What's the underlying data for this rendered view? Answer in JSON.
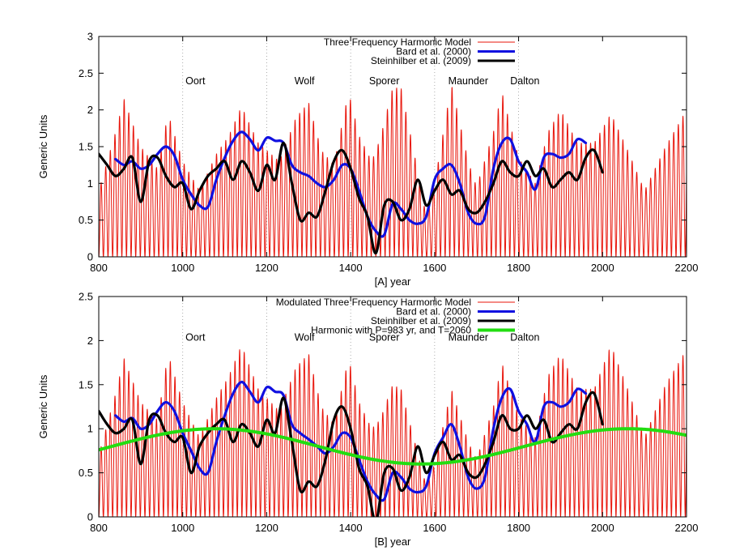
{
  "chart_data": [
    {
      "type": "line",
      "id": "A",
      "xlabel": "[A]   year",
      "ylabel": "Generic Units",
      "xlim": [
        800,
        2200
      ],
      "ylim": [
        0,
        3
      ],
      "xticks": [
        800,
        1000,
        1200,
        1400,
        1600,
        1800,
        2000,
        2200
      ],
      "yticks": [
        0,
        0.5,
        1,
        1.5,
        2,
        2.5,
        3
      ],
      "ytick_labels": [
        "0",
        "0.5",
        "1",
        "1.5",
        "2",
        "2.5",
        "3"
      ],
      "grid_x": [
        1000,
        1200,
        1400,
        1600,
        1800
      ],
      "legend": [
        "Three Frequency Harmonic Model",
        "Bard et al. (2000)",
        "Steinhilber et al. (2009)"
      ],
      "legend_position": "top-center",
      "annotations": [
        {
          "text": "Oort",
          "x": 1030,
          "y": 2.35
        },
        {
          "text": "Wolf",
          "x": 1290,
          "y": 2.35
        },
        {
          "text": "Sporer",
          "x": 1480,
          "y": 2.35
        },
        {
          "text": "Maunder",
          "x": 1680,
          "y": 2.35
        },
        {
          "text": "Dalton",
          "x": 1815,
          "y": 2.35
        }
      ],
      "series": [
        {
          "name": "Three Frequency Harmonic Model",
          "color": "#e8140a",
          "style": "oscillation",
          "period": 11,
          "x_range": [
            800,
            2200
          ],
          "envelope_x": [
            800,
            840,
            860,
            900,
            940,
            965,
            1000,
            1040,
            1080,
            1110,
            1140,
            1180,
            1230,
            1270,
            1300,
            1330,
            1360,
            1395,
            1420,
            1450,
            1470,
            1500,
            1520,
            1550,
            1580,
            1600,
            1640,
            1680,
            1700,
            1740,
            1760,
            1800,
            1840,
            1870,
            1900,
            1940,
            1980,
            2020,
            2060,
            2100,
            2150,
            2200
          ],
          "envelope_y": [
            0.9,
            1.7,
            2.15,
            1.5,
            1.2,
            1.95,
            1.3,
            0.9,
            1.4,
            1.65,
            2.05,
            1.55,
            1.3,
            1.9,
            2.1,
            1.45,
            1.25,
            2.25,
            1.65,
            1.3,
            1.6,
            2.3,
            2.3,
            1.45,
            0.55,
            1.0,
            2.35,
            1.3,
            0.95,
            1.7,
            2.25,
            1.35,
            1.0,
            1.7,
            2.0,
            1.55,
            1.55,
            1.95,
            1.45,
            0.9,
            1.5,
            2.0
          ]
        },
        {
          "name": "Bard et al. (2000)",
          "color": "#1010e0",
          "x": [
            840,
            860,
            880,
            900,
            920,
            940,
            960,
            980,
            1000,
            1020,
            1040,
            1060,
            1080,
            1100,
            1120,
            1140,
            1160,
            1180,
            1200,
            1220,
            1240,
            1260,
            1280,
            1300,
            1320,
            1340,
            1360,
            1380,
            1400,
            1420,
            1440,
            1460,
            1480,
            1500,
            1520,
            1540,
            1560,
            1580,
            1600,
            1620,
            1640,
            1660,
            1680,
            1700,
            1720,
            1740,
            1760,
            1780,
            1800,
            1820,
            1840,
            1860,
            1880,
            1900,
            1920,
            1940,
            1960
          ],
          "y": [
            1.33,
            1.25,
            1.3,
            1.2,
            1.25,
            1.4,
            1.5,
            1.38,
            1.05,
            0.85,
            0.7,
            0.68,
            1.05,
            1.35,
            1.58,
            1.7,
            1.6,
            1.45,
            1.62,
            1.58,
            1.55,
            1.25,
            1.15,
            1.1,
            1.0,
            0.95,
            1.05,
            1.25,
            1.2,
            0.9,
            0.55,
            0.35,
            0.3,
            0.72,
            0.65,
            0.5,
            0.45,
            0.55,
            1.05,
            1.2,
            1.25,
            1.0,
            0.6,
            0.45,
            0.55,
            1.2,
            1.55,
            1.6,
            1.3,
            1.15,
            0.92,
            1.35,
            1.4,
            1.35,
            1.4,
            1.6,
            1.55
          ]
        },
        {
          "name": "Steinhilber et al. (2009)",
          "color": "#000000",
          "x": [
            800,
            820,
            840,
            860,
            880,
            900,
            920,
            940,
            960,
            980,
            1000,
            1020,
            1040,
            1060,
            1080,
            1100,
            1120,
            1140,
            1160,
            1180,
            1200,
            1220,
            1240,
            1260,
            1280,
            1300,
            1320,
            1340,
            1360,
            1380,
            1400,
            1420,
            1440,
            1460,
            1480,
            1500,
            1520,
            1540,
            1560,
            1580,
            1600,
            1620,
            1640,
            1660,
            1680,
            1700,
            1720,
            1740,
            1760,
            1780,
            1800,
            1820,
            1840,
            1860,
            1880,
            1900,
            1920,
            1940,
            1960,
            1980,
            2000
          ],
          "y": [
            1.4,
            1.25,
            1.1,
            1.2,
            1.35,
            0.75,
            1.3,
            1.35,
            1.1,
            0.95,
            1.0,
            0.65,
            0.9,
            1.1,
            1.2,
            1.3,
            1.05,
            1.3,
            1.15,
            0.9,
            1.25,
            1.05,
            1.55,
            1.0,
            0.5,
            0.6,
            0.55,
            0.9,
            1.3,
            1.45,
            1.2,
            0.8,
            0.55,
            0.05,
            0.7,
            0.75,
            0.5,
            0.65,
            1.05,
            0.7,
            0.9,
            1.05,
            0.85,
            0.9,
            0.65,
            0.6,
            0.75,
            1.0,
            1.3,
            1.15,
            1.1,
            1.3,
            1.1,
            1.2,
            0.95,
            1.05,
            1.15,
            1.05,
            1.35,
            1.45,
            1.15
          ]
        }
      ]
    },
    {
      "type": "line",
      "id": "B",
      "xlabel": "[B]   year",
      "ylabel": "Generic Units",
      "xlim": [
        800,
        2200
      ],
      "ylim": [
        0,
        2.5
      ],
      "xticks": [
        800,
        1000,
        1200,
        1400,
        1600,
        1800,
        2000,
        2200
      ],
      "yticks": [
        0,
        0.5,
        1,
        1.5,
        2,
        2.5
      ],
      "ytick_labels": [
        "0",
        "0.5",
        "1",
        "1.5",
        "2",
        "2.5"
      ],
      "grid_x": [
        1000,
        1200,
        1400,
        1600,
        1800
      ],
      "legend": [
        "Modulated Three Frequency Harmonic Model",
        "Bard et al. (2000)",
        "Steinhilber et al. (2009)",
        "Harmonic with P=983 yr, and T=2060"
      ],
      "legend_position": "top-center",
      "annotations": [
        {
          "text": "Oort",
          "x": 1030,
          "y": 2.0
        },
        {
          "text": "Wolf",
          "x": 1290,
          "y": 2.0
        },
        {
          "text": "Sporer",
          "x": 1480,
          "y": 2.0
        },
        {
          "text": "Maunder",
          "x": 1680,
          "y": 2.0
        },
        {
          "text": "Dalton",
          "x": 1815,
          "y": 2.0
        }
      ],
      "series": [
        {
          "name": "Modulated Three Frequency Harmonic Model",
          "color": "#e8140a",
          "style": "oscillation",
          "period": 11,
          "x_range": [
            800,
            2200
          ],
          "envelope_x": [
            800,
            840,
            860,
            900,
            940,
            965,
            1000,
            1040,
            1080,
            1110,
            1140,
            1180,
            1230,
            1270,
            1300,
            1330,
            1360,
            1395,
            1420,
            1450,
            1470,
            1500,
            1520,
            1550,
            1580,
            1600,
            1640,
            1680,
            1700,
            1740,
            1760,
            1800,
            1840,
            1870,
            1900,
            1940,
            1980,
            2020,
            2060,
            2100,
            2150,
            2200
          ],
          "envelope_y": [
            0.7,
            1.4,
            1.8,
            1.3,
            1.1,
            1.85,
            1.3,
            0.9,
            1.35,
            1.6,
            1.95,
            1.45,
            1.2,
            1.7,
            1.85,
            1.25,
            1.05,
            1.8,
            1.3,
            1.0,
            1.1,
            1.5,
            1.45,
            0.9,
            0.35,
            0.6,
            1.45,
            0.85,
            0.65,
            1.25,
            1.75,
            1.15,
            0.9,
            1.6,
            1.85,
            1.45,
            1.45,
            1.95,
            1.45,
            0.9,
            1.5,
            1.9
          ]
        },
        {
          "name": "Bard et al. (2000)",
          "color": "#1010e0",
          "x": [
            840,
            860,
            880,
            900,
            920,
            940,
            960,
            980,
            1000,
            1020,
            1040,
            1060,
            1080,
            1100,
            1120,
            1140,
            1160,
            1180,
            1200,
            1220,
            1240,
            1260,
            1280,
            1300,
            1320,
            1340,
            1360,
            1380,
            1400,
            1420,
            1440,
            1460,
            1480,
            1500,
            1520,
            1540,
            1560,
            1580,
            1600,
            1620,
            1640,
            1660,
            1680,
            1700,
            1720,
            1740,
            1760,
            1780,
            1800,
            1820,
            1840,
            1860,
            1880,
            1900,
            1920,
            1940,
            1960
          ],
          "y": [
            1.15,
            1.08,
            1.12,
            1.0,
            1.05,
            1.2,
            1.3,
            1.2,
            0.95,
            0.75,
            0.55,
            0.5,
            0.85,
            1.15,
            1.4,
            1.53,
            1.42,
            1.3,
            1.47,
            1.42,
            1.38,
            1.05,
            0.95,
            0.88,
            0.8,
            0.72,
            0.8,
            0.95,
            0.9,
            0.65,
            0.4,
            0.25,
            0.2,
            0.5,
            0.45,
            0.32,
            0.28,
            0.35,
            0.72,
            0.9,
            1.05,
            0.8,
            0.45,
            0.32,
            0.45,
            1.0,
            1.35,
            1.45,
            1.2,
            1.05,
            0.85,
            1.25,
            1.3,
            1.25,
            1.3,
            1.45,
            1.4
          ]
        },
        {
          "name": "Steinhilber et al. (2009)",
          "color": "#000000",
          "x": [
            800,
            820,
            840,
            860,
            880,
            900,
            920,
            940,
            960,
            980,
            1000,
            1020,
            1040,
            1060,
            1080,
            1100,
            1120,
            1140,
            1160,
            1180,
            1200,
            1220,
            1240,
            1260,
            1280,
            1300,
            1320,
            1340,
            1360,
            1380,
            1400,
            1420,
            1440,
            1460,
            1480,
            1500,
            1520,
            1540,
            1560,
            1580,
            1600,
            1620,
            1640,
            1660,
            1680,
            1700,
            1720,
            1740,
            1760,
            1780,
            1800,
            1820,
            1840,
            1860,
            1880,
            1900,
            1920,
            1940,
            1960,
            1980,
            2000
          ],
          "y": [
            1.2,
            1.05,
            0.95,
            1.0,
            1.1,
            0.6,
            1.1,
            1.15,
            0.95,
            0.85,
            0.9,
            0.5,
            0.8,
            0.95,
            1.05,
            1.1,
            0.85,
            1.05,
            0.95,
            0.8,
            1.1,
            0.95,
            1.35,
            0.85,
            0.3,
            0.4,
            0.35,
            0.65,
            1.1,
            1.25,
            1.0,
            0.55,
            0.35,
            -0.05,
            0.5,
            0.55,
            0.3,
            0.45,
            0.8,
            0.5,
            0.7,
            0.85,
            0.65,
            0.7,
            0.5,
            0.45,
            0.6,
            0.85,
            1.15,
            1.0,
            1.0,
            1.15,
            1.0,
            1.1,
            0.85,
            0.95,
            1.05,
            1.0,
            1.3,
            1.4,
            1.05
          ]
        },
        {
          "name": "Harmonic with P=983 yr, and T=2060",
          "color": "#22dd11",
          "style": "harmonic",
          "period": 983,
          "peak_year": 2060,
          "max": 1.0,
          "min": 0.6,
          "x_range": [
            800,
            2200
          ]
        }
      ]
    }
  ]
}
